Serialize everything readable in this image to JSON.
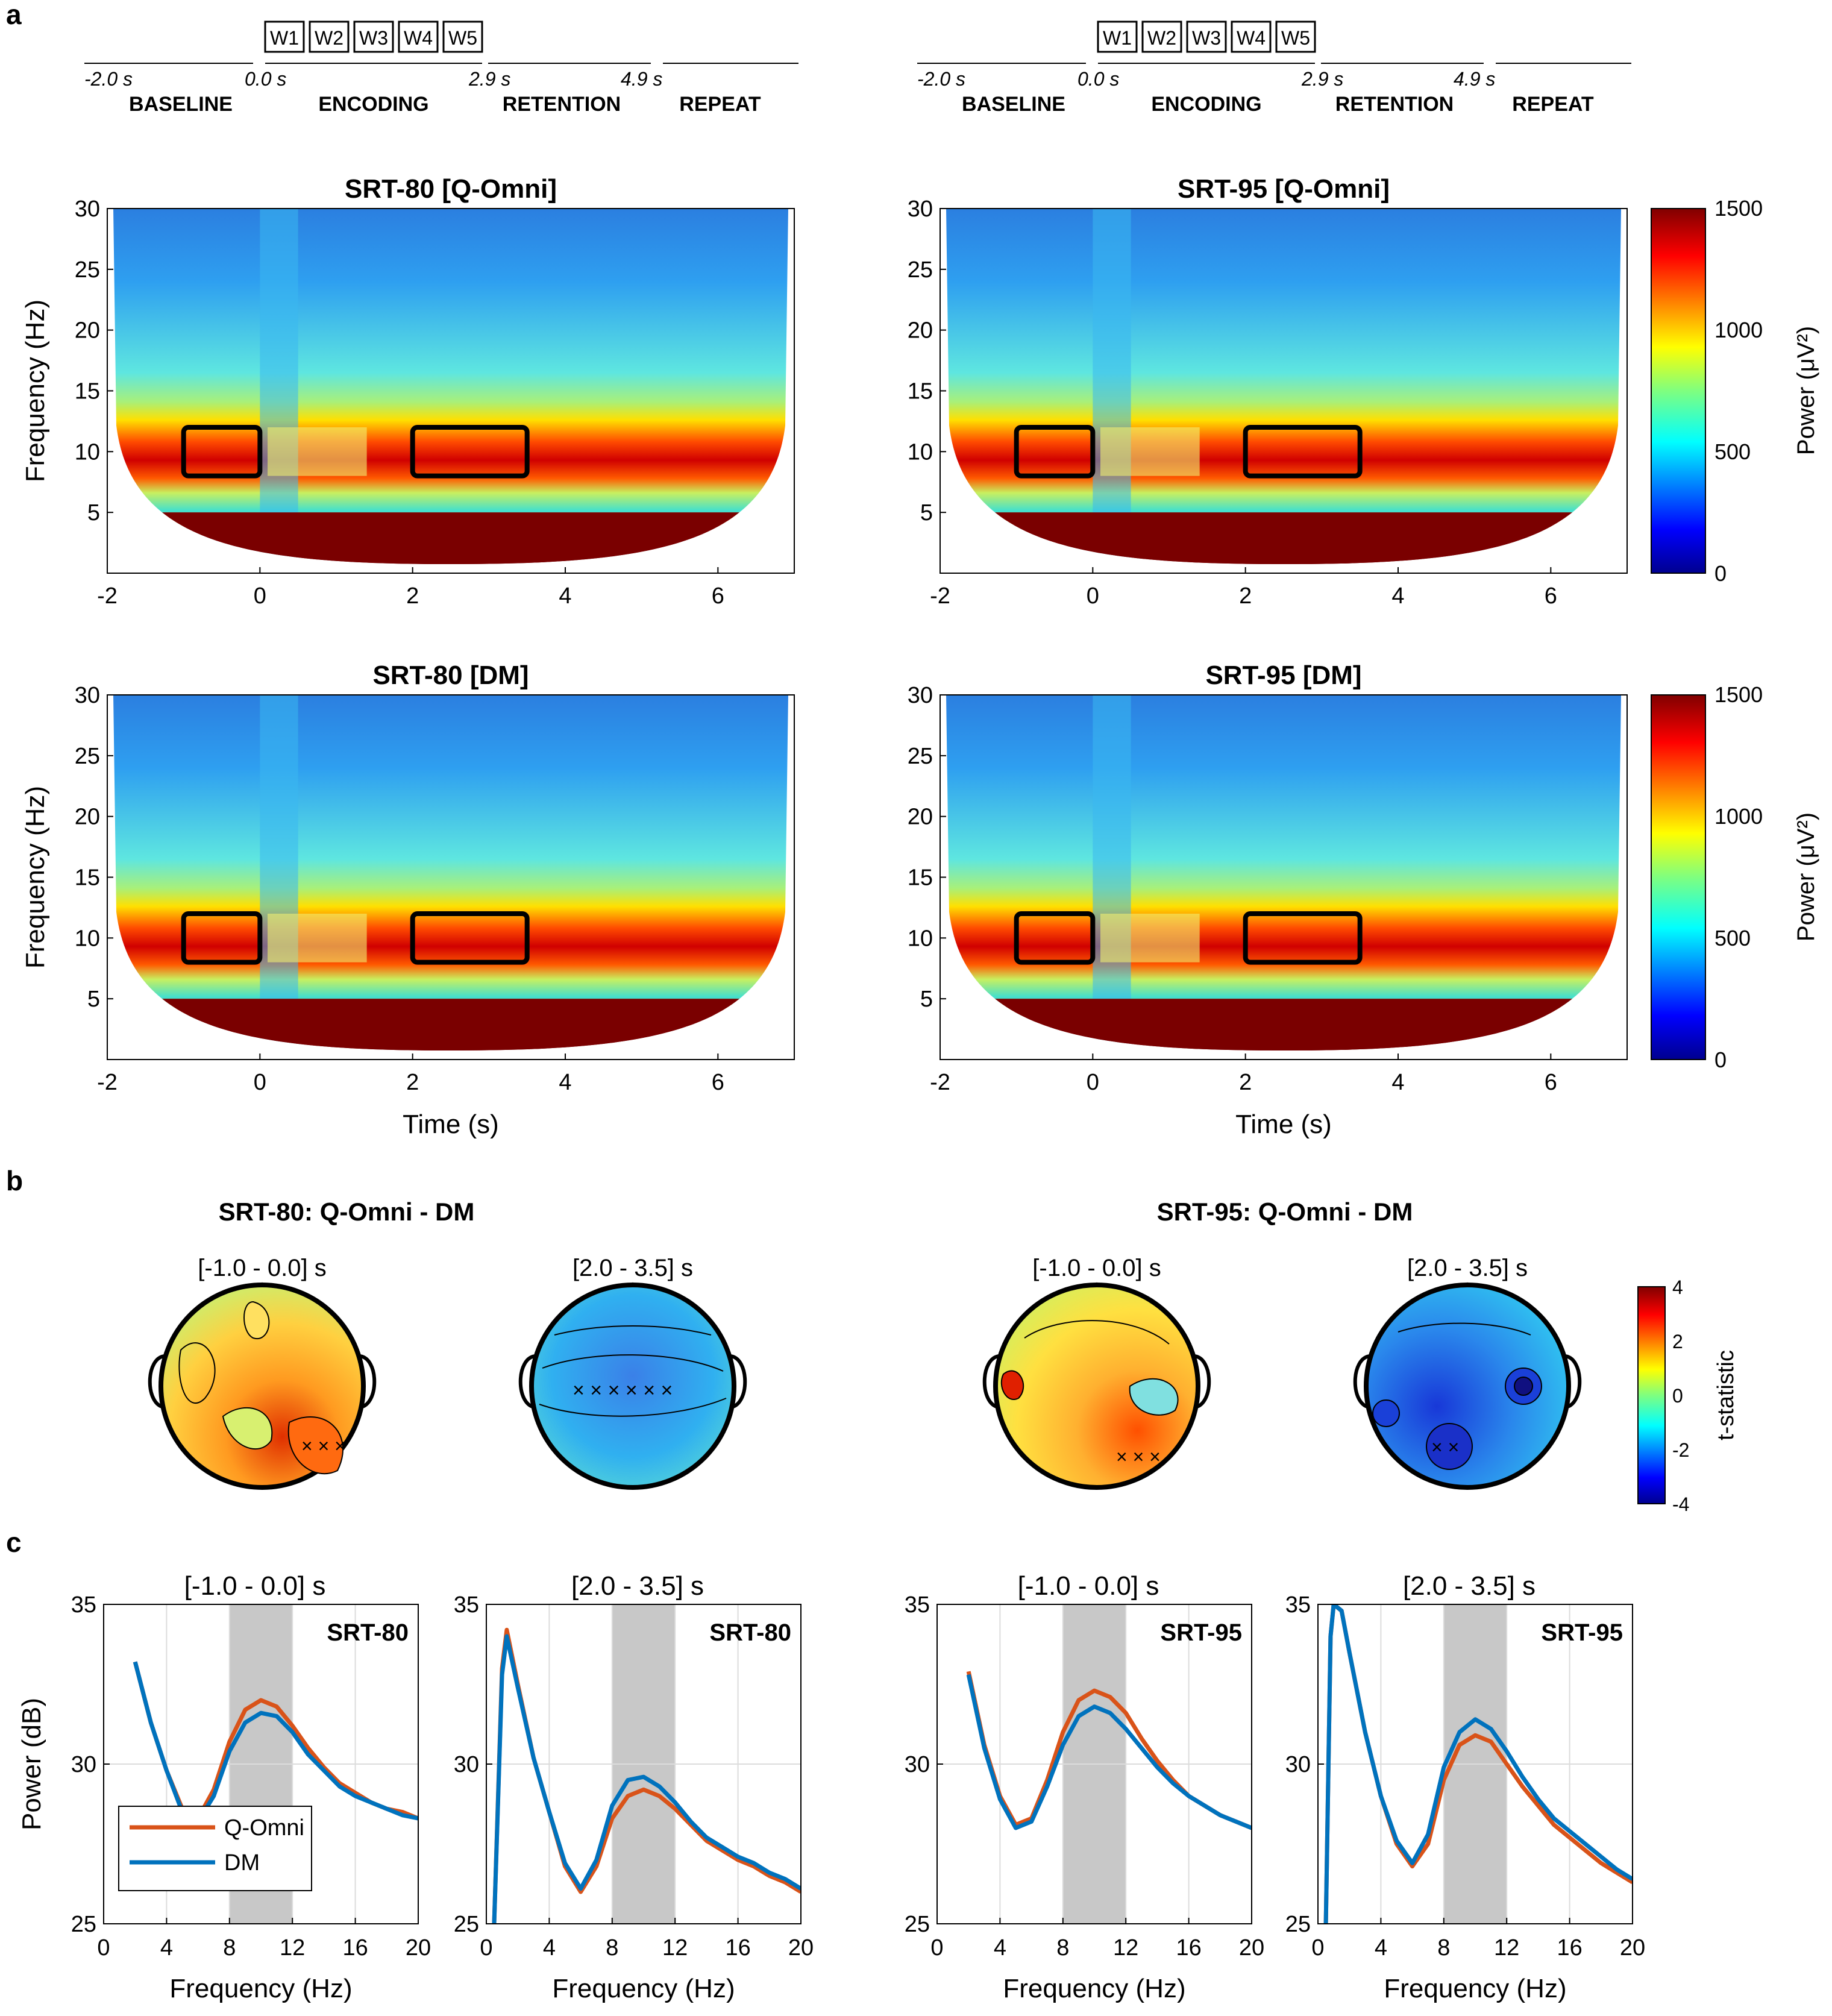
{
  "panel_letters": [
    "a",
    "b",
    "c"
  ],
  "timeline": {
    "words": [
      "W1",
      "W2",
      "W3",
      "W4",
      "W5"
    ],
    "times": [
      "-2.0 s",
      "0.0 s",
      "2.9 s",
      "4.9 s"
    ],
    "phases": [
      "BASELINE",
      "ENCODING",
      "RETENTION",
      "REPEAT"
    ]
  },
  "chart_data": [
    {
      "type": "heatmap",
      "title": "SRT-80 [Q-Omni]",
      "xlabel": "",
      "ylabel": "Frequency (Hz)",
      "xlim": [
        -2,
        7
      ],
      "ylim": [
        0,
        30
      ],
      "xticks": [
        -2,
        0,
        2,
        4,
        6
      ],
      "yticks": [
        5,
        10,
        15,
        20,
        25,
        30
      ],
      "roi_boxes": [
        {
          "t": [
            -1.0,
            0.0
          ],
          "f": [
            8,
            12
          ]
        },
        {
          "t": [
            2.0,
            3.5
          ],
          "f": [
            8,
            12
          ]
        }
      ],
      "value_range": [
        0,
        1500
      ]
    },
    {
      "type": "heatmap",
      "title": "SRT-95 [Q-Omni]",
      "xlabel": "",
      "ylabel": "",
      "xlim": [
        -2,
        7
      ],
      "ylim": [
        0,
        30
      ],
      "xticks": [
        -2,
        0,
        2,
        4,
        6
      ],
      "yticks": [
        5,
        10,
        15,
        20,
        25,
        30
      ],
      "roi_boxes": [
        {
          "t": [
            -1.0,
            0.0
          ],
          "f": [
            8,
            12
          ]
        },
        {
          "t": [
            2.0,
            3.5
          ],
          "f": [
            8,
            12
          ]
        }
      ],
      "value_range": [
        0,
        1500
      ]
    },
    {
      "type": "heatmap",
      "title": "SRT-80 [DM]",
      "xlabel": "Time (s)",
      "ylabel": "Frequency (Hz)",
      "xlim": [
        -2,
        7
      ],
      "ylim": [
        0,
        30
      ],
      "xticks": [
        -2,
        0,
        2,
        4,
        6
      ],
      "yticks": [
        5,
        10,
        15,
        20,
        25,
        30
      ],
      "roi_boxes": [
        {
          "t": [
            -1.0,
            0.0
          ],
          "f": [
            8,
            12
          ]
        },
        {
          "t": [
            2.0,
            3.5
          ],
          "f": [
            8,
            12
          ]
        }
      ],
      "value_range": [
        0,
        1500
      ]
    },
    {
      "type": "heatmap",
      "title": "SRT-95 [DM]",
      "xlabel": "Time (s)",
      "ylabel": "",
      "xlim": [
        -2,
        7
      ],
      "ylim": [
        0,
        30
      ],
      "xticks": [
        -2,
        0,
        2,
        4,
        6
      ],
      "yticks": [
        5,
        10,
        15,
        20,
        25,
        30
      ],
      "roi_boxes": [
        {
          "t": [
            -1.0,
            0.0
          ],
          "f": [
            8,
            12
          ]
        },
        {
          "t": [
            2.0,
            3.5
          ],
          "f": [
            8,
            12
          ]
        }
      ],
      "value_range": [
        0,
        1500
      ]
    },
    {
      "type": "line",
      "title": "[-1.0  -  0.0] s",
      "label": "SRT-80",
      "xlabel": "Frequency (Hz)",
      "ylabel": "Power (dB)",
      "xlim": [
        0,
        20
      ],
      "ylim": [
        25,
        35
      ],
      "xticks": [
        0,
        4,
        8,
        12,
        16,
        20
      ],
      "yticks": [
        25,
        30,
        35
      ],
      "shaded_band": [
        8,
        12
      ],
      "x": [
        2,
        3,
        4,
        5,
        6,
        7,
        8,
        9,
        10,
        11,
        12,
        13,
        14,
        15,
        16,
        17,
        18,
        19,
        20
      ],
      "series": [
        {
          "name": "Q-Omni",
          "values": [
            33.2,
            31.3,
            29.8,
            28.6,
            28.3,
            29.2,
            30.7,
            31.7,
            32.0,
            31.8,
            31.2,
            30.5,
            29.9,
            29.4,
            29.1,
            28.8,
            28.6,
            28.5,
            28.3
          ]
        },
        {
          "name": "DM",
          "values": [
            33.2,
            31.3,
            29.8,
            28.5,
            28.2,
            29.0,
            30.4,
            31.3,
            31.6,
            31.5,
            31.0,
            30.3,
            29.8,
            29.3,
            29.0,
            28.8,
            28.6,
            28.4,
            28.3
          ]
        }
      ],
      "legend": [
        "Q-Omni",
        "DM"
      ]
    },
    {
      "type": "line",
      "title": "[2.0  -  3.5] s",
      "label": "SRT-80",
      "xlabel": "Frequency (Hz)",
      "ylabel": "",
      "xlim": [
        0,
        20
      ],
      "ylim": [
        25,
        35
      ],
      "xticks": [
        0,
        4,
        8,
        12,
        16,
        20
      ],
      "yticks": [
        25,
        30,
        35
      ],
      "shaded_band": [
        8,
        12
      ],
      "x": [
        0.5,
        1,
        1.3,
        2,
        3,
        4,
        5,
        6,
        7,
        8,
        9,
        10,
        11,
        12,
        13,
        14,
        15,
        16,
        17,
        18,
        19,
        20
      ],
      "series": [
        {
          "name": "Q-Omni",
          "values": [
            25,
            33.0,
            34.2,
            32.5,
            30.2,
            28.5,
            26.8,
            26.0,
            26.8,
            28.3,
            29.0,
            29.2,
            29.0,
            28.6,
            28.1,
            27.6,
            27.3,
            27.0,
            26.8,
            26.5,
            26.3,
            26.0
          ]
        },
        {
          "name": "DM",
          "values": [
            25,
            32.8,
            34.0,
            32.4,
            30.2,
            28.5,
            26.9,
            26.1,
            27.0,
            28.7,
            29.5,
            29.6,
            29.3,
            28.8,
            28.2,
            27.7,
            27.4,
            27.1,
            26.9,
            26.6,
            26.4,
            26.1
          ]
        }
      ]
    },
    {
      "type": "line",
      "title": "[-1.0  -  0.0] s",
      "label": "SRT-95",
      "xlabel": "Frequency (Hz)",
      "ylabel": "",
      "xlim": [
        0,
        20
      ],
      "ylim": [
        25,
        35
      ],
      "xticks": [
        0,
        4,
        8,
        12,
        16,
        20
      ],
      "yticks": [
        25,
        30,
        35
      ],
      "shaded_band": [
        8,
        12
      ],
      "x": [
        2,
        3,
        4,
        5,
        6,
        7,
        8,
        9,
        10,
        11,
        12,
        13,
        14,
        15,
        16,
        17,
        18,
        19,
        20
      ],
      "series": [
        {
          "name": "Q-Omni",
          "values": [
            32.9,
            30.6,
            29.0,
            28.1,
            28.3,
            29.5,
            31.0,
            32.0,
            32.3,
            32.1,
            31.6,
            30.8,
            30.1,
            29.5,
            29.0,
            28.7,
            28.4,
            28.2,
            28.0
          ]
        },
        {
          "name": "DM",
          "values": [
            32.8,
            30.5,
            28.9,
            28.0,
            28.2,
            29.3,
            30.6,
            31.5,
            31.8,
            31.6,
            31.1,
            30.5,
            29.9,
            29.4,
            29.0,
            28.7,
            28.4,
            28.2,
            28.0
          ]
        }
      ]
    },
    {
      "type": "line",
      "title": "[2.0  -  3.5] s",
      "label": "SRT-95",
      "xlabel": "Frequency (Hz)",
      "ylabel": "",
      "xlim": [
        0,
        20
      ],
      "ylim": [
        25,
        35
      ],
      "xticks": [
        0,
        4,
        8,
        12,
        16,
        20
      ],
      "yticks": [
        25,
        30,
        35
      ],
      "shaded_band": [
        8,
        12
      ],
      "x": [
        0.5,
        0.8,
        1,
        1.5,
        2,
        3,
        4,
        5,
        6,
        7,
        8,
        9,
        10,
        11,
        12,
        13,
        14,
        15,
        16,
        17,
        18,
        19,
        20
      ],
      "series": [
        {
          "name": "Q-Omni",
          "values": [
            25,
            34.0,
            35.0,
            34.8,
            33.5,
            31.0,
            29.0,
            27.5,
            26.8,
            27.5,
            29.5,
            30.6,
            30.9,
            30.7,
            30.0,
            29.3,
            28.7,
            28.1,
            27.7,
            27.3,
            26.9,
            26.6,
            26.3
          ]
        },
        {
          "name": "DM",
          "values": [
            25,
            34.0,
            35.0,
            34.8,
            33.5,
            31.0,
            29.0,
            27.6,
            26.9,
            27.8,
            29.9,
            31.0,
            31.4,
            31.1,
            30.4,
            29.6,
            28.9,
            28.3,
            27.9,
            27.5,
            27.1,
            26.7,
            26.4
          ]
        }
      ]
    }
  ],
  "topoplots": {
    "rows": [
      {
        "title": "SRT-80: Q-Omni - DM",
        "windows": [
          "[-1.0   -   0.0] s",
          "[2.0   -   3.5] s"
        ]
      },
      {
        "title": "SRT-95: Q-Omni - DM",
        "windows": [
          "[-1.0   -   0.0] s",
          "[2.0   -   3.5] s"
        ]
      }
    ],
    "colorbar": {
      "label": "t-statistic",
      "ticks": [
        "4",
        "2",
        "0",
        "-2",
        "-4"
      ],
      "range": [
        -4,
        4
      ]
    }
  },
  "power_colorbar": {
    "label": "Power (μV²)",
    "ticks": [
      "1500",
      "1000",
      "500",
      "0"
    ],
    "range": [
      0,
      1500
    ]
  },
  "colors": {
    "q_omni": "#d95319",
    "dm": "#0072bd",
    "band": "#c8c8c8"
  }
}
